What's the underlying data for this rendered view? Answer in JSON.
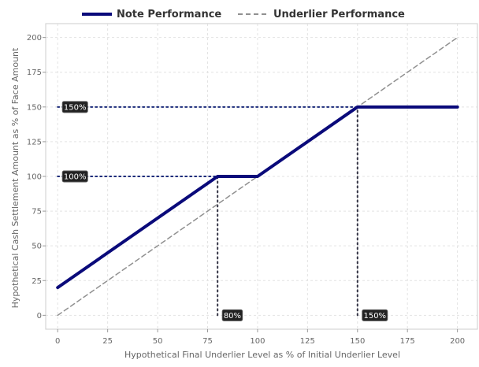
{
  "chart_data": {
    "type": "line",
    "title": "",
    "xlabel": "Hypothetical Final Underlier Level as % of Initial Underlier Level",
    "ylabel": "Hypothetical Cash Settlement Amount as % of Face Amount",
    "xlim": [
      -6,
      210
    ],
    "ylim": [
      -10,
      210
    ],
    "x_ticks": [
      0,
      25,
      50,
      75,
      100,
      125,
      150,
      175,
      200
    ],
    "y_ticks": [
      0,
      25,
      50,
      75,
      100,
      125,
      150,
      175,
      200
    ],
    "grid": true,
    "legend_position": "top",
    "series": [
      {
        "name": "Note Performance",
        "style": "solid",
        "color": "#0a0a7a",
        "points": [
          [
            0,
            20
          ],
          [
            80,
            100
          ],
          [
            100,
            100
          ],
          [
            150,
            150
          ],
          [
            200,
            150
          ]
        ]
      },
      {
        "name": "Underlier Performance",
        "style": "dashed",
        "color": "#909090",
        "points": [
          [
            0,
            0
          ],
          [
            200,
            200
          ]
        ]
      }
    ],
    "reference_lines": [
      {
        "axis": "h",
        "value": 150,
        "from": 0,
        "to": 150
      },
      {
        "axis": "h",
        "value": 100,
        "from": 0,
        "to": 80
      },
      {
        "axis": "v",
        "value": 80,
        "from": 0,
        "to": 100
      },
      {
        "axis": "v",
        "value": 150,
        "from": 0,
        "to": 150
      }
    ],
    "annotations": [
      {
        "text": "150%",
        "x": 0,
        "y": 150,
        "anchor": "y-axis"
      },
      {
        "text": "100%",
        "x": 0,
        "y": 100,
        "anchor": "y-axis"
      },
      {
        "text": "80%",
        "x": 80,
        "y": 0,
        "anchor": "x-axis"
      },
      {
        "text": "150%",
        "x": 150,
        "y": 0,
        "anchor": "x-axis"
      }
    ]
  }
}
